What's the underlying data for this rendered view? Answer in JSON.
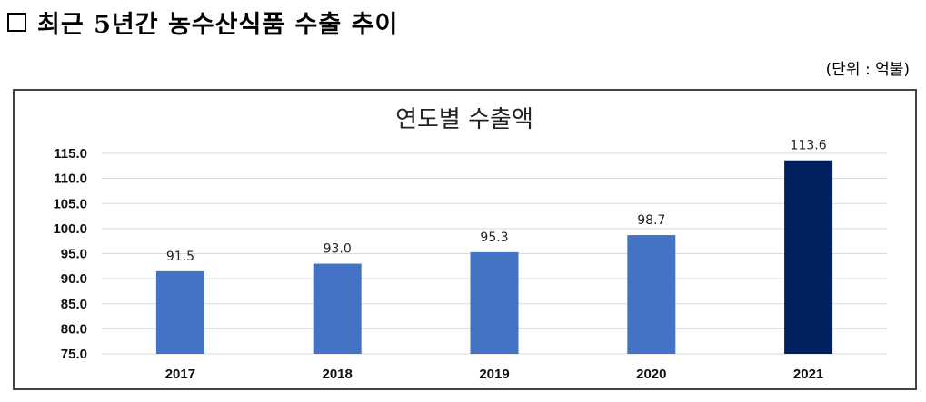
{
  "heading": "최근 5년간 농수산식품 수출 추이",
  "unit_note": "(단위 : 억불)",
  "colors": {
    "bar": "#4472C4",
    "highlight_bar": "#002060",
    "grid": "#d9d9d9"
  },
  "chart_data": {
    "type": "bar",
    "title": "연도별 수출액",
    "xlabel": "",
    "ylabel": "",
    "categories": [
      "2017",
      "2018",
      "2019",
      "2020",
      "2021"
    ],
    "values": [
      91.5,
      93.0,
      95.3,
      98.7,
      113.6
    ],
    "data_labels": [
      "91.5",
      "93.0",
      "95.3",
      "98.7",
      "113.6"
    ],
    "ylim": [
      75.0,
      115.0
    ],
    "yticks": [
      "75.0",
      "80.0",
      "85.0",
      "90.0",
      "95.0",
      "100.0",
      "105.0",
      "110.0",
      "115.0"
    ],
    "highlight_index": 4,
    "grid": true,
    "legend": "none"
  }
}
